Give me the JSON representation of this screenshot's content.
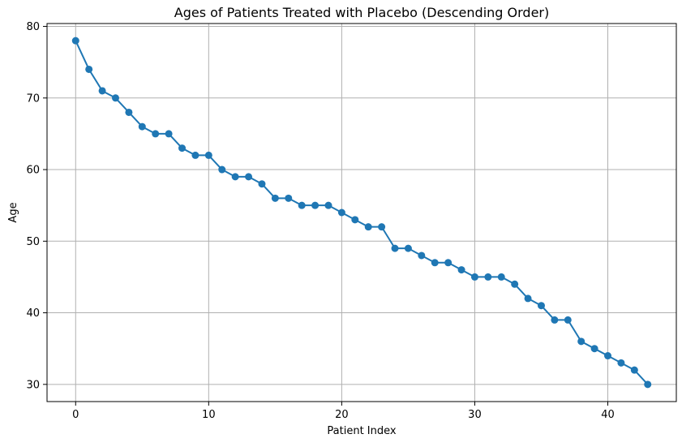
{
  "chart_data": {
    "type": "line",
    "title": "Ages of Patients Treated with Placebo (Descending Order)",
    "xlabel": "Patient Index",
    "ylabel": "Age",
    "xlim": [
      -2.15,
      45.15
    ],
    "ylim": [
      27.6,
      80.4
    ],
    "xticks": [
      0,
      10,
      20,
      30,
      40
    ],
    "yticks": [
      30,
      40,
      50,
      60,
      70,
      80
    ],
    "grid": true,
    "legend": "none",
    "marker": "circle",
    "color": "#1f77b4",
    "series": [
      {
        "x": [
          0,
          1,
          2,
          3,
          4,
          5,
          6,
          7,
          8,
          9,
          10,
          11,
          12,
          13,
          14,
          15,
          16,
          17,
          18,
          19,
          20,
          21,
          22,
          23,
          24,
          25,
          26,
          27,
          28,
          29,
          30,
          31,
          32,
          33,
          34,
          35,
          36,
          37,
          38,
          39,
          40,
          41,
          42,
          43
        ],
        "values": [
          78,
          74,
          71,
          70,
          68,
          66,
          65,
          65,
          63,
          62,
          62,
          60,
          59,
          59,
          58,
          56,
          56,
          55,
          55,
          55,
          54,
          53,
          52,
          52,
          49,
          49,
          48,
          47,
          47,
          46,
          45,
          45,
          45,
          44,
          42,
          41,
          39,
          39,
          36,
          35,
          34,
          33,
          32,
          30
        ]
      }
    ]
  }
}
